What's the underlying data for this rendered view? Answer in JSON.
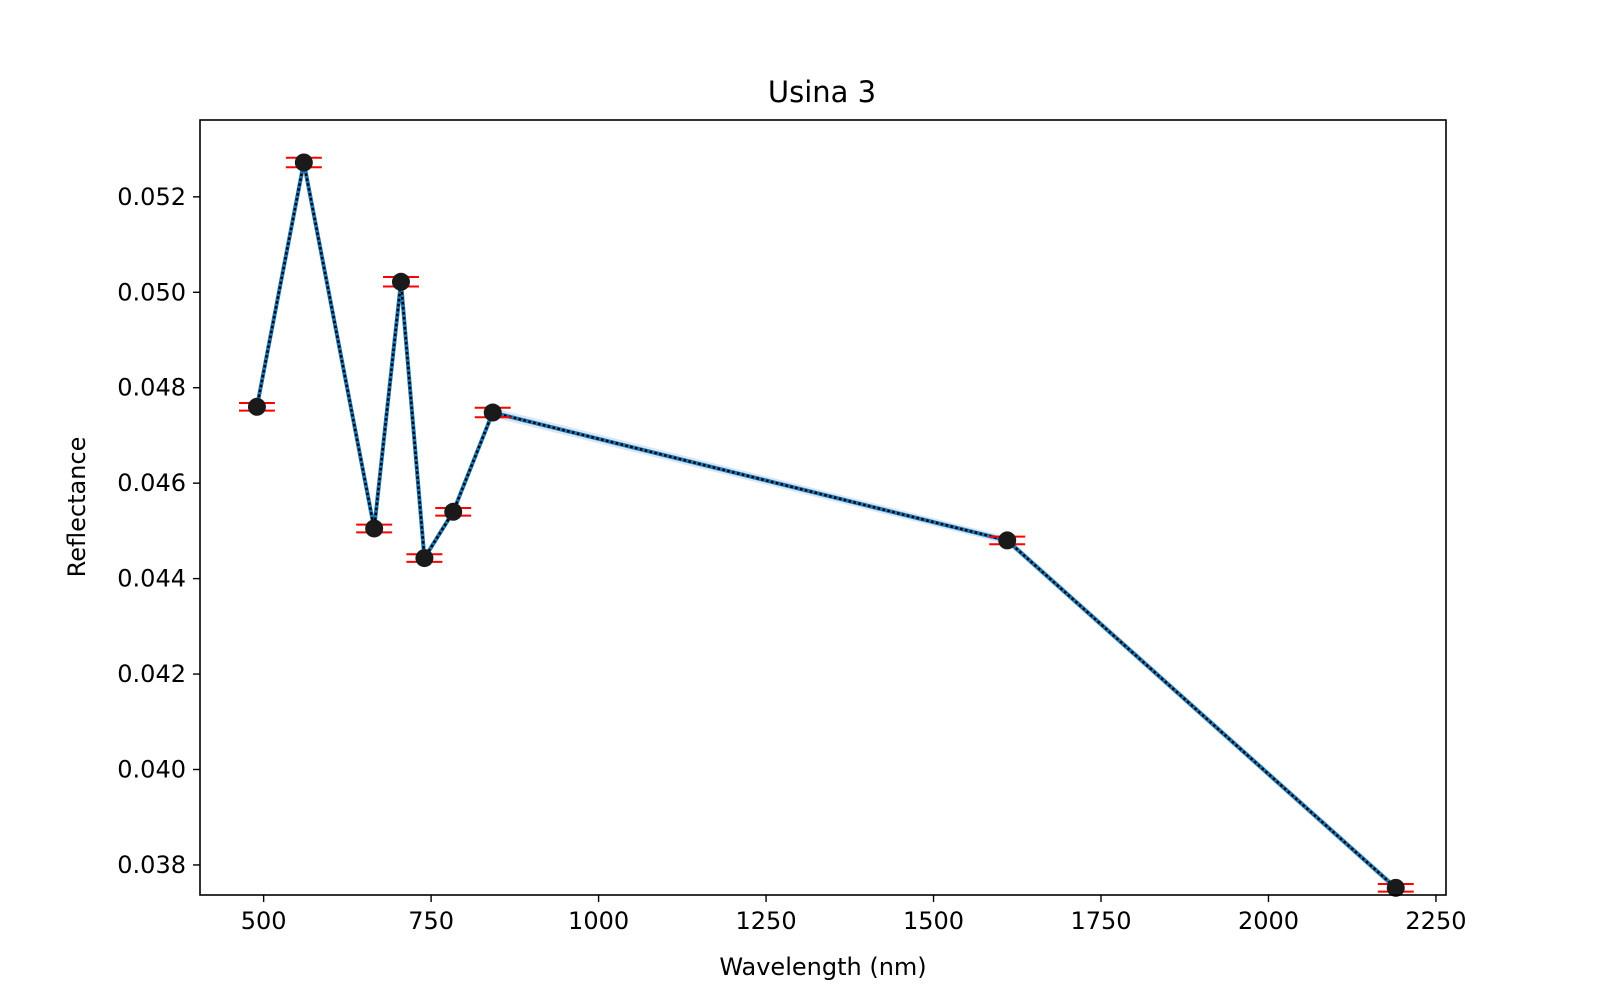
{
  "chart_data": {
    "type": "line",
    "title": "Usina 3",
    "xlabel": "Wavelength (nm)",
    "ylabel": "Reflectance",
    "xlim": [
      405,
      2265
    ],
    "ylim": [
      0.03737,
      0.05361
    ],
    "xticks": [
      500,
      750,
      1000,
      1250,
      1500,
      1750,
      2000,
      2250
    ],
    "xtick_labels": [
      "500",
      "750",
      "1000",
      "1250",
      "1500",
      "1750",
      "2000",
      "2250"
    ],
    "yticks": [
      0.038,
      0.04,
      0.042,
      0.044,
      0.046,
      0.048,
      0.05,
      0.052
    ],
    "ytick_labels": [
      "0.038",
      "0.040",
      "0.042",
      "0.044",
      "0.046",
      "0.048",
      "0.050",
      "0.052"
    ],
    "grid": false,
    "series": [
      {
        "x": [
          490,
          560,
          665,
          705,
          740,
          783,
          842,
          1610,
          2190
        ],
        "y": [
          0.0476,
          0.05272,
          0.04505,
          0.05022,
          0.04443,
          0.0454,
          0.04748,
          0.0448,
          0.03752
        ],
        "error": [
          8e-05,
          0.0001,
          8e-05,
          0.0001,
          8e-05,
          8e-05,
          0.0001,
          8e-05,
          8e-05
        ]
      }
    ],
    "colors": {
      "line": "#1f77b4",
      "band": "#aec7e8",
      "marker": "#1a1a1a",
      "errorbar": "#ff0000",
      "dotted": "#000000"
    }
  }
}
